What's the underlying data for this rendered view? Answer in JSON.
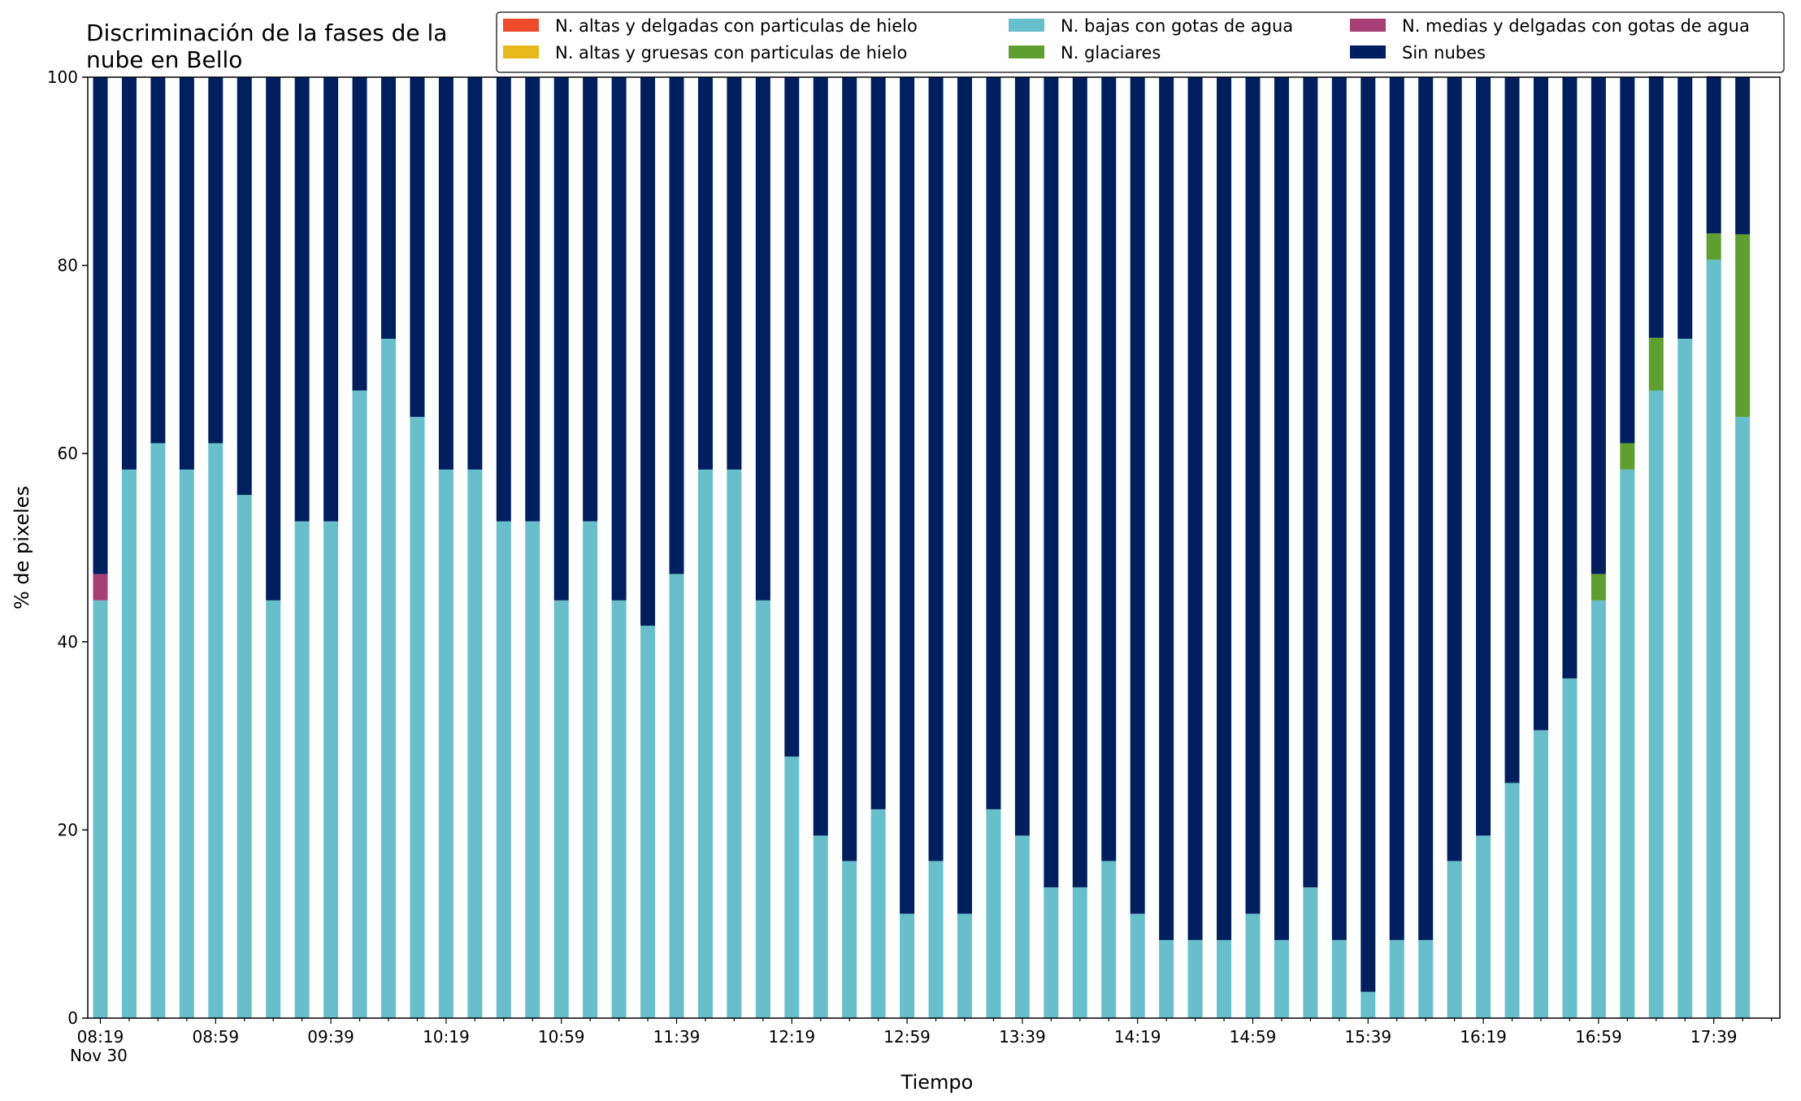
{
  "chart_data": {
    "type": "bar",
    "stacked": true,
    "title": "Discriminación de la fases de la nube en Bello",
    "title_lines": [
      "Discriminación de la fases de la",
      "nube en Bello"
    ],
    "xlabel": "Tiempo",
    "ylabel": "% de pixeles",
    "ylim": [
      0,
      100
    ],
    "yticks": [
      0,
      20,
      40,
      60,
      80,
      100
    ],
    "grid": false,
    "legend_position": "top-right",
    "legend_columns": 3,
    "x_tick_labels": [
      "08:19",
      "08:59",
      "09:39",
      "10:19",
      "10:59",
      "11:39",
      "12:19",
      "12:59",
      "13:39",
      "14:19",
      "14:59",
      "15:39",
      "16:19",
      "16:59",
      "17:39"
    ],
    "x_date_label": "Nov 30",
    "categories": [
      "08:19",
      "08:29",
      "08:39",
      "08:49",
      "08:59",
      "09:09",
      "09:19",
      "09:29",
      "09:39",
      "09:49",
      "09:59",
      "10:09",
      "10:19",
      "10:29",
      "10:39",
      "10:49",
      "10:59",
      "11:09",
      "11:19",
      "11:29",
      "11:39",
      "11:49",
      "11:59",
      "12:09",
      "12:19",
      "12:29",
      "12:39",
      "12:49",
      "12:59",
      "13:09",
      "13:19",
      "13:29",
      "13:39",
      "13:49",
      "13:59",
      "14:09",
      "14:19",
      "14:29",
      "14:39",
      "14:49",
      "14:59",
      "15:09",
      "15:19",
      "15:29",
      "15:39",
      "15:49",
      "15:59",
      "16:09",
      "16:19",
      "16:29",
      "16:39",
      "16:49",
      "16:59",
      "17:09",
      "17:19",
      "17:29",
      "17:39",
      "17:49"
    ],
    "series": [
      {
        "name": "N. altas y delgadas con particulas de hielo",
        "color": "#ee4b2b",
        "values": [
          0,
          0,
          0,
          0,
          0,
          0,
          0,
          0,
          0,
          0,
          0,
          0,
          0,
          0,
          0,
          0,
          0,
          0,
          0,
          0,
          0,
          0,
          0,
          0,
          0,
          0,
          0,
          0,
          0,
          0,
          0,
          0,
          0,
          0,
          0,
          0,
          0,
          0,
          0,
          0,
          0,
          0,
          0,
          0,
          0,
          0,
          0,
          0,
          0,
          0,
          0,
          0,
          0,
          0,
          0,
          0,
          0,
          0
        ]
      },
      {
        "name": "N. altas y gruesas con particulas de hielo",
        "color": "#e6b818",
        "values": [
          0,
          0,
          0,
          0,
          0,
          0,
          0,
          0,
          0,
          0,
          0,
          0,
          0,
          0,
          0,
          0,
          0,
          0,
          0,
          0,
          0,
          0,
          0,
          0,
          0,
          0,
          0,
          0,
          0,
          0,
          0,
          0,
          0,
          0,
          0,
          0,
          0,
          0,
          0,
          0,
          0,
          0,
          0,
          0,
          0,
          0,
          0,
          0,
          0,
          0,
          0,
          0,
          0,
          0,
          0,
          0,
          0,
          0
        ]
      },
      {
        "name": "N. bajas con gotas de agua",
        "color": "#66bfca",
        "values": [
          44.4,
          58.3,
          61.1,
          58.3,
          61.1,
          55.6,
          44.4,
          52.8,
          52.8,
          66.7,
          72.2,
          63.9,
          58.3,
          58.3,
          52.8,
          52.8,
          44.4,
          52.8,
          44.4,
          41.7,
          47.2,
          58.3,
          58.3,
          44.4,
          27.8,
          19.4,
          16.7,
          22.2,
          11.1,
          16.7,
          11.1,
          22.2,
          19.4,
          13.9,
          13.9,
          16.7,
          11.1,
          8.3,
          8.3,
          8.3,
          11.1,
          8.3,
          13.9,
          8.3,
          2.8,
          8.3,
          8.3,
          16.7,
          19.4,
          25.0,
          30.6,
          36.1,
          44.4,
          58.3,
          66.7,
          72.2,
          80.6,
          63.9
        ]
      },
      {
        "name": "N. glaciares",
        "color": "#5f9f2f",
        "values": [
          0,
          0,
          0,
          0,
          0,
          0,
          0,
          0,
          0,
          0,
          0,
          0,
          0,
          0,
          0,
          0,
          0,
          0,
          0,
          0,
          0,
          0,
          0,
          0,
          0,
          0,
          0,
          0,
          0,
          0,
          0,
          0,
          0,
          0,
          0,
          0,
          0,
          0,
          0,
          0,
          0,
          0,
          0,
          0,
          0,
          0,
          0,
          0,
          0,
          0,
          0,
          0,
          2.8,
          2.8,
          5.6,
          0,
          2.8,
          19.4
        ]
      },
      {
        "name": "N. medias y delgadas con gotas de agua",
        "color": "#a63f74",
        "values": [
          2.8,
          0,
          0,
          0,
          0,
          0,
          0,
          0,
          0,
          0,
          0,
          0,
          0,
          0,
          0,
          0,
          0,
          0,
          0,
          0,
          0,
          0,
          0,
          0,
          0,
          0,
          0,
          0,
          0,
          0,
          0,
          0,
          0,
          0,
          0,
          0,
          0,
          0,
          0,
          0,
          0,
          0,
          0,
          0,
          0,
          0,
          0,
          0,
          0,
          0,
          0,
          0,
          0,
          0,
          0,
          0,
          0,
          0
        ]
      },
      {
        "name": "Sin nubes",
        "color": "#001f5f",
        "values": [
          52.8,
          41.7,
          38.9,
          41.7,
          38.9,
          44.4,
          55.6,
          47.2,
          47.2,
          33.3,
          27.8,
          36.1,
          41.7,
          41.7,
          47.2,
          47.2,
          55.6,
          47.2,
          55.6,
          58.3,
          52.8,
          41.7,
          41.7,
          55.6,
          72.2,
          80.6,
          83.3,
          77.8,
          88.9,
          83.3,
          88.9,
          77.8,
          80.6,
          86.1,
          86.1,
          83.3,
          88.9,
          91.7,
          91.7,
          91.7,
          88.9,
          91.7,
          86.1,
          91.7,
          97.2,
          91.7,
          91.7,
          83.3,
          80.6,
          75.0,
          69.4,
          63.9,
          52.8,
          38.9,
          27.8,
          27.8,
          16.7,
          16.7
        ]
      }
    ]
  }
}
